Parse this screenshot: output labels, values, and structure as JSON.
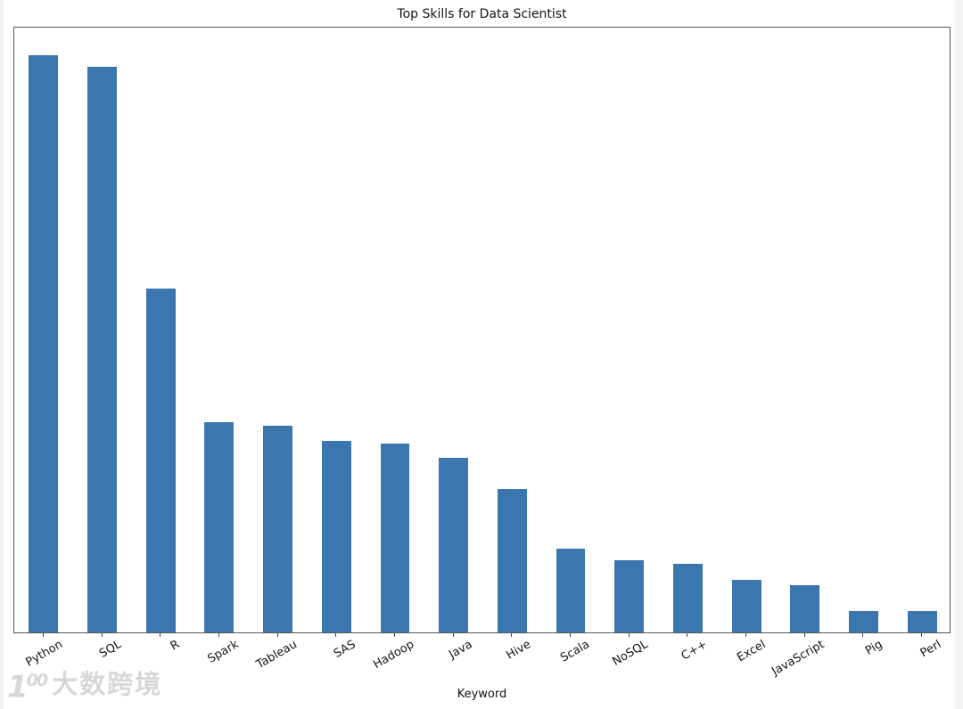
{
  "window": {
    "background_color": "#ffffff"
  },
  "chart_data": {
    "type": "bar",
    "title": "Top Skills for Data Scientist",
    "xlabel": "Keyword",
    "ylabel": "",
    "categories": [
      "Python",
      "SQL",
      "R",
      "Spark",
      "Tableau",
      "SAS",
      "Hadoop",
      "Java",
      "Hive",
      "Scala",
      "NoSQL",
      "C++",
      "Excel",
      "JavaScript",
      "Pig",
      "Perl"
    ],
    "values": [
      95.5,
      93.5,
      56.8,
      34.7,
      34.2,
      31.7,
      31.2,
      28.8,
      23.7,
      13.8,
      11.9,
      11.3,
      8.7,
      7.8,
      3.6,
      3.6
    ],
    "value_units": "relative bar height, percent of plot height (y-axis has no ticks or labels in the image)",
    "ylim": [
      0,
      100
    ],
    "bar_color": "#3b76af",
    "bar_width_fraction_of_slot": 0.5,
    "x_tick_rotation_deg": 30,
    "grid": false,
    "legend": false,
    "spine_color": "#555555"
  },
  "watermark": {
    "logo": "100",
    "text": "大数跨境"
  }
}
